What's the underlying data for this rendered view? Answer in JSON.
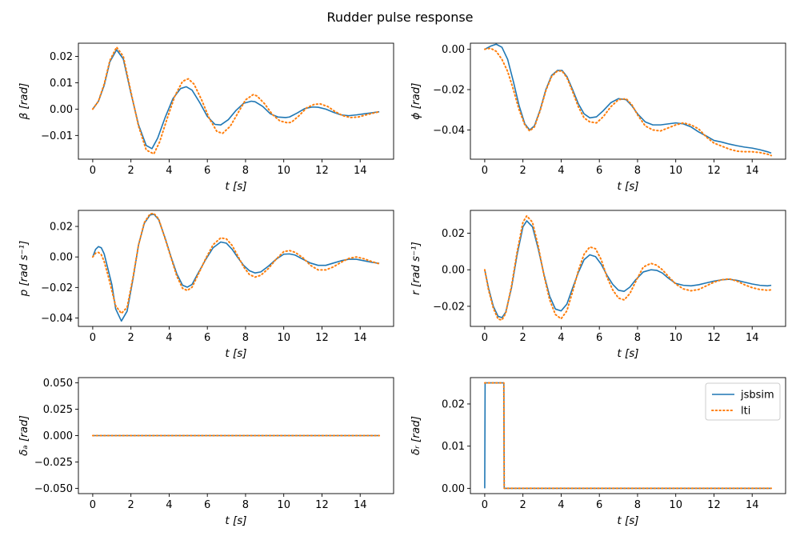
{
  "figure": {
    "title": "Rudder pulse response"
  },
  "colors": {
    "jsbsim": "#1f77b4",
    "lti": "#ff7f0e"
  },
  "legend": {
    "placement": "top-right",
    "subplot": 5,
    "entries": [
      {
        "label": "jsbsim",
        "style": "solid",
        "color": "#1f77b4"
      },
      {
        "label": "lti",
        "style": "dotted",
        "color": "#ff7f0e"
      }
    ]
  },
  "chart_data": [
    {
      "type": "line",
      "xlabel": "t [s]",
      "ylabel": "β [rad]",
      "xlim": [
        -0.75,
        15.75
      ],
      "ylim": [
        -0.019,
        0.025
      ],
      "xticks": [
        0,
        2,
        4,
        6,
        8,
        10,
        12,
        14
      ],
      "yticks": [
        -0.01,
        0.0,
        0.01,
        0.02
      ],
      "ytick_labels": [
        "−0.01",
        "0.00",
        "0.01",
        "0.02"
      ],
      "series": [
        {
          "name": "jsbsim",
          "style": "solid",
          "x": [
            0,
            0.3,
            0.6,
            0.9,
            1.25,
            1.6,
            2.0,
            2.4,
            2.8,
            3.1,
            3.4,
            3.8,
            4.2,
            4.6,
            4.9,
            5.2,
            5.6,
            6.0,
            6.4,
            6.7,
            7.1,
            7.5,
            7.9,
            8.3,
            8.5,
            8.9,
            9.3,
            9.7,
            10.1,
            10.3,
            10.7,
            11.1,
            11.5,
            11.8,
            12.2,
            12.6,
            13.0,
            13.4,
            13.8,
            14.2,
            14.6,
            15.0
          ],
          "y": [
            0.0,
            0.003,
            0.009,
            0.018,
            0.0225,
            0.019,
            0.006,
            -0.006,
            -0.0138,
            -0.015,
            -0.011,
            -0.003,
            0.004,
            0.0078,
            0.0085,
            0.0072,
            0.0025,
            -0.0028,
            -0.0058,
            -0.006,
            -0.004,
            -0.0005,
            0.0022,
            0.003,
            0.0028,
            0.001,
            -0.0018,
            -0.003,
            -0.0032,
            -0.003,
            -0.0015,
            0.0002,
            0.0008,
            0.0007,
            0.0,
            -0.0012,
            -0.0022,
            -0.0025,
            -0.0022,
            -0.0018,
            -0.0014,
            -0.001
          ]
        },
        {
          "name": "lti",
          "style": "dotted",
          "x": [
            0,
            0.3,
            0.6,
            0.9,
            1.25,
            1.6,
            2.0,
            2.4,
            2.8,
            3.2,
            3.5,
            3.9,
            4.3,
            4.7,
            5.0,
            5.3,
            5.7,
            6.1,
            6.5,
            6.8,
            7.2,
            7.6,
            8.0,
            8.4,
            8.6,
            9.0,
            9.4,
            9.8,
            10.2,
            10.4,
            10.8,
            11.2,
            11.6,
            11.9,
            12.3,
            12.7,
            13.1,
            13.5,
            13.9,
            14.3,
            14.7,
            15.0
          ],
          "y": [
            0.0,
            0.003,
            0.0095,
            0.0185,
            0.0235,
            0.02,
            0.0065,
            -0.0065,
            -0.0155,
            -0.017,
            -0.0125,
            -0.0035,
            0.005,
            0.0105,
            0.0115,
            0.0095,
            0.0035,
            -0.0035,
            -0.0085,
            -0.0092,
            -0.0065,
            -0.0015,
            0.0035,
            0.0055,
            0.005,
            0.002,
            -0.002,
            -0.0045,
            -0.0052,
            -0.005,
            -0.0025,
            0.0005,
            0.0018,
            0.002,
            0.001,
            -0.001,
            -0.0025,
            -0.0032,
            -0.003,
            -0.0022,
            -0.0015,
            -0.001
          ]
        }
      ]
    },
    {
      "type": "line",
      "xlabel": "t [s]",
      "ylabel": "ϕ [rad]",
      "xlim": [
        -0.75,
        15.75
      ],
      "ylim": [
        -0.0545,
        0.003
      ],
      "xticks": [
        0,
        2,
        4,
        6,
        8,
        10,
        12,
        14
      ],
      "yticks": [
        -0.04,
        -0.02,
        0.0
      ],
      "ytick_labels": [
        "−0.04",
        "−0.02",
        "0.00"
      ],
      "series": [
        {
          "name": "jsbsim",
          "style": "solid",
          "x": [
            0,
            0.3,
            0.6,
            0.9,
            1.2,
            1.5,
            1.8,
            2.1,
            2.35,
            2.6,
            2.9,
            3.2,
            3.5,
            3.8,
            4.05,
            4.3,
            4.6,
            4.9,
            5.2,
            5.5,
            5.85,
            6.2,
            6.6,
            7.0,
            7.4,
            7.7,
            8.0,
            8.4,
            8.8,
            9.2,
            9.6,
            10.0,
            10.4,
            10.8,
            11.2,
            11.6,
            12.0,
            12.4,
            12.8,
            13.2,
            13.6,
            14.0,
            14.4,
            14.8,
            15.0
          ],
          "y": [
            0.0,
            0.0015,
            0.0025,
            0.001,
            -0.005,
            -0.016,
            -0.028,
            -0.037,
            -0.04,
            -0.038,
            -0.03,
            -0.02,
            -0.013,
            -0.0105,
            -0.0105,
            -0.0135,
            -0.02,
            -0.027,
            -0.032,
            -0.034,
            -0.0335,
            -0.0305,
            -0.0265,
            -0.0245,
            -0.025,
            -0.028,
            -0.032,
            -0.036,
            -0.0375,
            -0.0375,
            -0.037,
            -0.0365,
            -0.037,
            -0.0385,
            -0.041,
            -0.043,
            -0.0452,
            -0.046,
            -0.047,
            -0.0478,
            -0.0485,
            -0.049,
            -0.0498,
            -0.0508,
            -0.0515
          ]
        },
        {
          "name": "lti",
          "style": "dotted",
          "x": [
            0,
            0.3,
            0.6,
            0.9,
            1.2,
            1.5,
            1.8,
            2.1,
            2.35,
            2.6,
            2.9,
            3.2,
            3.5,
            3.8,
            4.05,
            4.3,
            4.6,
            4.9,
            5.2,
            5.5,
            5.85,
            6.2,
            6.6,
            7.0,
            7.4,
            7.7,
            8.0,
            8.4,
            8.8,
            9.2,
            9.6,
            10.0,
            10.4,
            10.8,
            11.2,
            11.6,
            12.0,
            12.4,
            12.8,
            13.2,
            13.6,
            14.0,
            14.4,
            14.8,
            15.0
          ],
          "y": [
            0.0,
            0.0005,
            -0.001,
            -0.005,
            -0.011,
            -0.02,
            -0.03,
            -0.0375,
            -0.0405,
            -0.0385,
            -0.0305,
            -0.0205,
            -0.0135,
            -0.0108,
            -0.0108,
            -0.014,
            -0.021,
            -0.0285,
            -0.034,
            -0.036,
            -0.0365,
            -0.0335,
            -0.0285,
            -0.025,
            -0.0245,
            -0.0275,
            -0.0325,
            -0.038,
            -0.04,
            -0.0405,
            -0.039,
            -0.0375,
            -0.0365,
            -0.0375,
            -0.0395,
            -0.0435,
            -0.0465,
            -0.048,
            -0.0495,
            -0.0505,
            -0.0508,
            -0.0508,
            -0.0512,
            -0.052,
            -0.0527
          ]
        }
      ]
    },
    {
      "type": "line",
      "xlabel": "t [s]",
      "ylabel": "p [rad s⁻¹]",
      "xlim": [
        -0.75,
        15.75
      ],
      "ylim": [
        -0.0455,
        0.0305
      ],
      "xticks": [
        0,
        2,
        4,
        6,
        8,
        10,
        12,
        14
      ],
      "yticks": [
        -0.04,
        -0.02,
        0.0,
        0.02
      ],
      "ytick_labels": [
        "−0.04",
        "−0.02",
        "0.00",
        "0.02"
      ],
      "series": [
        {
          "name": "jsbsim",
          "style": "solid",
          "x": [
            0,
            0.15,
            0.3,
            0.45,
            0.6,
            0.8,
            1.0,
            1.2,
            1.5,
            1.8,
            2.1,
            2.4,
            2.7,
            3.0,
            3.2,
            3.45,
            3.8,
            4.1,
            4.4,
            4.7,
            4.95,
            5.2,
            5.5,
            5.9,
            6.3,
            6.7,
            7.0,
            7.3,
            7.6,
            7.9,
            8.2,
            8.5,
            8.8,
            9.2,
            9.6,
            10.0,
            10.3,
            10.6,
            11.0,
            11.4,
            11.8,
            12.2,
            12.6,
            13.0,
            13.4,
            13.8,
            14.2,
            14.6,
            15.0
          ],
          "y": [
            0.0,
            0.005,
            0.0068,
            0.006,
            0.002,
            -0.008,
            -0.018,
            -0.034,
            -0.042,
            -0.0355,
            -0.015,
            0.008,
            0.022,
            0.0275,
            0.028,
            0.0245,
            0.012,
            0.0,
            -0.011,
            -0.0185,
            -0.0198,
            -0.018,
            -0.011,
            -0.002,
            0.006,
            0.0098,
            0.009,
            0.005,
            -0.0005,
            -0.0055,
            -0.009,
            -0.0105,
            -0.0098,
            -0.006,
            -0.0015,
            0.0018,
            0.002,
            0.0012,
            -0.0015,
            -0.004,
            -0.0055,
            -0.0055,
            -0.004,
            -0.0025,
            -0.0015,
            -0.0015,
            -0.0025,
            -0.0035,
            -0.0042
          ]
        },
        {
          "name": "lti",
          "style": "dotted",
          "x": [
            0,
            0.15,
            0.3,
            0.45,
            0.6,
            0.8,
            1.0,
            1.2,
            1.5,
            1.8,
            2.1,
            2.4,
            2.7,
            3.0,
            3.2,
            3.45,
            3.8,
            4.1,
            4.4,
            4.7,
            4.95,
            5.2,
            5.5,
            5.9,
            6.3,
            6.7,
            7.0,
            7.3,
            7.6,
            7.9,
            8.2,
            8.5,
            8.8,
            9.2,
            9.6,
            10.0,
            10.3,
            10.6,
            11.0,
            11.4,
            11.8,
            12.2,
            12.6,
            13.0,
            13.4,
            13.8,
            14.2,
            14.6,
            15.0
          ],
          "y": [
            0.0,
            0.0025,
            0.003,
            0.0015,
            -0.003,
            -0.012,
            -0.022,
            -0.032,
            -0.037,
            -0.033,
            -0.014,
            0.008,
            0.0225,
            0.0282,
            0.0285,
            0.025,
            0.0115,
            -0.0005,
            -0.0125,
            -0.0205,
            -0.022,
            -0.0198,
            -0.012,
            -0.0015,
            0.008,
            0.0125,
            0.0118,
            0.0075,
            0.0005,
            -0.0065,
            -0.0115,
            -0.0132,
            -0.012,
            -0.0075,
            -0.0015,
            0.0035,
            0.0042,
            0.003,
            -0.0005,
            -0.0055,
            -0.0085,
            -0.0085,
            -0.0065,
            -0.0035,
            -0.001,
            0.0,
            -0.0012,
            -0.003,
            -0.0045
          ]
        }
      ]
    },
    {
      "type": "line",
      "xlabel": "t [s]",
      "ylabel": "r [rad s⁻¹]",
      "xlim": [
        -0.75,
        15.75
      ],
      "ylim": [
        -0.031,
        0.0325
      ],
      "xticks": [
        0,
        2,
        4,
        6,
        8,
        10,
        12,
        14
      ],
      "yticks": [
        -0.02,
        0.0,
        0.02
      ],
      "ytick_labels": [
        "−0.02",
        "0.00",
        "0.02"
      ],
      "series": [
        {
          "name": "jsbsim",
          "style": "solid",
          "x": [
            0,
            0.2,
            0.45,
            0.7,
            0.9,
            1.1,
            1.4,
            1.7,
            2.0,
            2.2,
            2.5,
            2.8,
            3.1,
            3.4,
            3.7,
            4.0,
            4.3,
            4.6,
            4.9,
            5.2,
            5.5,
            5.8,
            6.1,
            6.4,
            6.7,
            7.0,
            7.3,
            7.6,
            7.9,
            8.3,
            8.7,
            9.0,
            9.3,
            9.6,
            10.0,
            10.4,
            10.8,
            11.2,
            11.6,
            12.0,
            12.4,
            12.8,
            13.2,
            13.6,
            14.0,
            14.4,
            14.8,
            15.0
          ],
          "y": [
            0.0,
            -0.01,
            -0.02,
            -0.0255,
            -0.0262,
            -0.0232,
            -0.01,
            0.0085,
            0.0235,
            0.0268,
            0.0235,
            0.0115,
            -0.0025,
            -0.0145,
            -0.0215,
            -0.0225,
            -0.0188,
            -0.01,
            -0.0015,
            0.0055,
            0.0082,
            0.0072,
            0.003,
            -0.003,
            -0.008,
            -0.0112,
            -0.0118,
            -0.0095,
            -0.0055,
            -0.0012,
            0.0,
            -0.0003,
            -0.0018,
            -0.0045,
            -0.0075,
            -0.0085,
            -0.0088,
            -0.0082,
            -0.0072,
            -0.0062,
            -0.0055,
            -0.0052,
            -0.0058,
            -0.0068,
            -0.0078,
            -0.0085,
            -0.0088,
            -0.0085
          ]
        },
        {
          "name": "lti",
          "style": "dotted",
          "x": [
            0,
            0.2,
            0.45,
            0.7,
            0.9,
            1.1,
            1.4,
            1.7,
            2.0,
            2.2,
            2.5,
            2.8,
            3.1,
            3.4,
            3.7,
            4.0,
            4.3,
            4.6,
            4.9,
            5.2,
            5.5,
            5.8,
            6.1,
            6.4,
            6.7,
            7.0,
            7.3,
            7.6,
            7.9,
            8.3,
            8.7,
            9.0,
            9.3,
            9.6,
            10.0,
            10.4,
            10.8,
            11.2,
            11.6,
            12.0,
            12.4,
            12.8,
            13.2,
            13.6,
            14.0,
            14.4,
            14.8,
            15.0
          ],
          "y": [
            0.0,
            -0.011,
            -0.021,
            -0.027,
            -0.0275,
            -0.0238,
            -0.009,
            0.01,
            0.026,
            0.0295,
            0.026,
            0.013,
            -0.003,
            -0.0165,
            -0.0245,
            -0.0268,
            -0.0225,
            -0.012,
            -0.0005,
            0.0085,
            0.0125,
            0.0115,
            0.0055,
            -0.004,
            -0.011,
            -0.0155,
            -0.0165,
            -0.013,
            -0.0065,
            0.0015,
            0.0035,
            0.0025,
            0.0,
            -0.0035,
            -0.0078,
            -0.0105,
            -0.0115,
            -0.0108,
            -0.0088,
            -0.0068,
            -0.0055,
            -0.005,
            -0.0062,
            -0.0082,
            -0.0098,
            -0.0108,
            -0.0112,
            -0.011
          ]
        }
      ]
    },
    {
      "type": "line",
      "xlabel": "t [s]",
      "ylabel": "δₐ [rad]",
      "xlim": [
        -0.75,
        15.75
      ],
      "ylim": [
        -0.055,
        0.055
      ],
      "xticks": [
        0,
        2,
        4,
        6,
        8,
        10,
        12,
        14
      ],
      "yticks": [
        -0.05,
        -0.025,
        0.0,
        0.025,
        0.05
      ],
      "ytick_labels": [
        "−0.050",
        "−0.025",
        "0.000",
        "0.025",
        "0.050"
      ],
      "series": [
        {
          "name": "jsbsim",
          "style": "solid",
          "x": [
            0,
            15
          ],
          "y": [
            0.0,
            0.0
          ]
        },
        {
          "name": "lti",
          "style": "dotted",
          "x": [
            0,
            15
          ],
          "y": [
            0.0,
            0.0
          ]
        }
      ]
    },
    {
      "type": "line",
      "xlabel": "t [s]",
      "ylabel": "δᵣ [rad]",
      "xlim": [
        -0.75,
        15.75
      ],
      "ylim": [
        -0.00125,
        0.02625
      ],
      "xticks": [
        0,
        2,
        4,
        6,
        8,
        10,
        12,
        14
      ],
      "yticks": [
        0.0,
        0.01,
        0.02
      ],
      "ytick_labels": [
        "0.00",
        "0.01",
        "0.02"
      ],
      "series": [
        {
          "name": "jsbsim",
          "style": "solid",
          "x": [
            0,
            0.02,
            1.0,
            1.02,
            15
          ],
          "y": [
            0.0,
            0.025,
            0.025,
            0.0,
            0.0
          ]
        },
        {
          "name": "lti",
          "style": "dotted",
          "x": [
            0,
            0.02,
            1.0,
            1.02,
            15
          ],
          "y": [
            0.025,
            0.025,
            0.025,
            0.0,
            0.0
          ]
        }
      ]
    }
  ]
}
